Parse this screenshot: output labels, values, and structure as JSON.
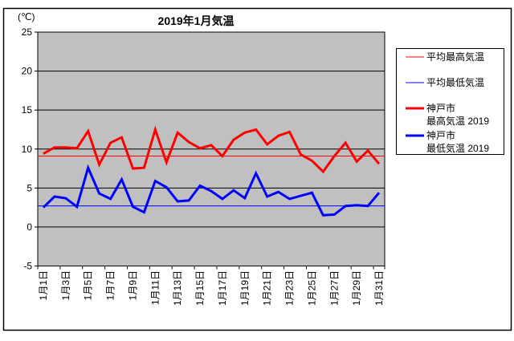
{
  "chart": {
    "title": "2019年1月気温",
    "unit_label": "(℃)",
    "plot_bg": "#C0C0C0",
    "outer_bg": "#FFFFFF",
    "border_color": "#000000",
    "gridline_color": "#000000",
    "y_axis": {
      "min": -5,
      "max": 25,
      "step": 5,
      "tick_labels": [
        "25",
        "20",
        "15",
        "10",
        "5",
        "0",
        "-5"
      ]
    },
    "x_axis": {
      "labeled_days": [
        1,
        3,
        5,
        7,
        9,
        11,
        13,
        15,
        17,
        19,
        21,
        23,
        25,
        27,
        29,
        31
      ],
      "labels": [
        "1月1日",
        "1月3日",
        "1月5日",
        "1月7日",
        "1月9日",
        "1月11日",
        "1月13日",
        "1月15日",
        "1月17日",
        "1月19日",
        "1月21日",
        "1月23日",
        "1月25日",
        "1月27日",
        "1月29日",
        "1月31日"
      ]
    }
  },
  "chart_data": {
    "type": "line",
    "title": "2019年1月気温",
    "xlabel": "",
    "ylabel": "(℃)",
    "ylim": [
      -5,
      25
    ],
    "grid": true,
    "legend_position": "right",
    "x": [
      1,
      2,
      3,
      4,
      5,
      6,
      7,
      8,
      9,
      10,
      11,
      12,
      13,
      14,
      15,
      16,
      17,
      18,
      19,
      20,
      21,
      22,
      23,
      24,
      25,
      26,
      27,
      28,
      29,
      30,
      31
    ],
    "series": [
      {
        "name": "平均最高気温",
        "color": "#FF0000",
        "width": 1,
        "style": "constant",
        "value": 9.1
      },
      {
        "name": "平均最低気温",
        "color": "#0000FF",
        "width": 1,
        "style": "constant",
        "value": 2.7
      },
      {
        "name": "神戸市 最高気温 2019",
        "color": "#FF0000",
        "width": 3,
        "values": [
          9.4,
          10.2,
          10.2,
          10.1,
          12.3,
          8.0,
          10.8,
          11.5,
          7.5,
          7.6,
          12.5,
          8.3,
          12.1,
          10.9,
          10.1,
          10.5,
          9.1,
          11.2,
          12.1,
          12.5,
          10.6,
          11.7,
          12.2,
          9.3,
          8.5,
          7.1,
          9.1,
          10.8,
          8.4,
          9.8,
          8.1
        ]
      },
      {
        "name": "神戸市 最低気温 2019",
        "color": "#0000FF",
        "width": 3,
        "values": [
          2.5,
          3.9,
          3.7,
          2.6,
          7.6,
          4.3,
          3.6,
          6.1,
          2.6,
          1.9,
          5.9,
          5.1,
          3.3,
          3.4,
          5.3,
          4.6,
          3.6,
          4.7,
          3.7,
          6.9,
          3.9,
          4.5,
          3.6,
          4.0,
          4.4,
          1.5,
          1.6,
          2.7,
          2.8,
          2.7,
          4.4
        ]
      }
    ]
  },
  "legend": {
    "items": [
      {
        "lines": [
          "平均最高気温"
        ],
        "color": "#FF0000",
        "width": 1
      },
      {
        "lines": [
          "平均最低気温"
        ],
        "color": "#0000FF",
        "width": 1
      },
      {
        "lines": [
          "神戸市",
          "最高気温 2019"
        ],
        "color": "#FF0000",
        "width": 3
      },
      {
        "lines": [
          "神戸市",
          "最低気温 2019"
        ],
        "color": "#0000FF",
        "width": 3
      }
    ]
  }
}
